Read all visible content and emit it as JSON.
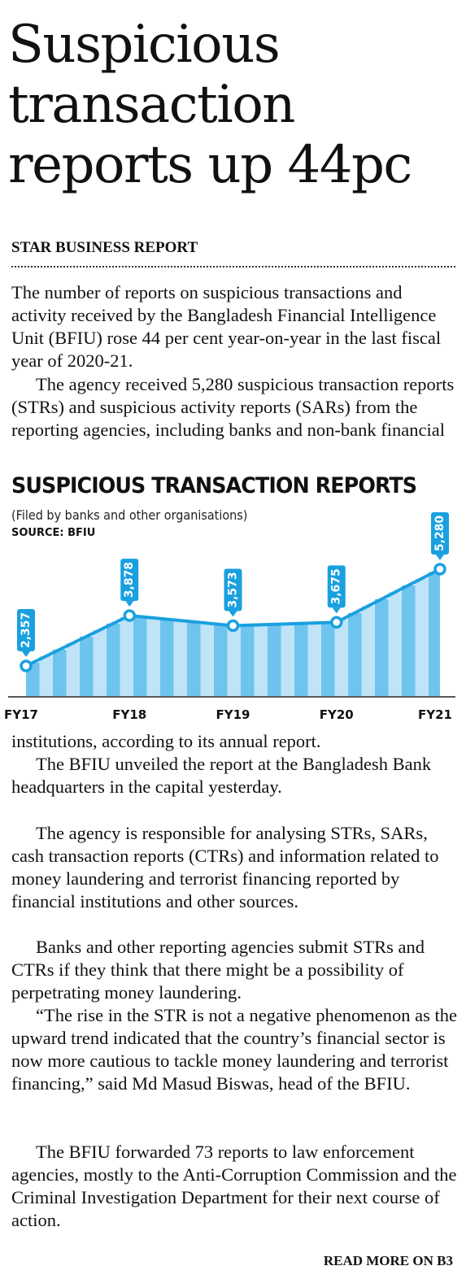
{
  "headline": "Suspicious transaction reports up 44pc",
  "byline": "STAR BUSINESS REPORT",
  "paragraphs_top": [
    "The number of reports on suspicious transactions and activity received by the Bangladesh Financial Intelligence Unit (BFIU) rose 44 per cent year-on-year in the last fiscal year of 2020-21.",
    "The agency received 5,280 suspicious transaction reports (STRs) and suspicious activity reports (SARs) from the reporting agencies, including banks and non-bank financial"
  ],
  "paragraphs_bottom": [
    "institutions, according to its annual report.",
    "The BFIU unveiled the report at the Bangladesh Bank headquarters in the capital yesterday.",
    "The agency is responsible for analysing STRs, SARs, cash transaction reports (CTRs) and information related to money laundering and terrorist financing reported by financial institutions and other sources.",
    "Banks and other reporting agencies submit STRs and CTRs if they think that there might be a possibility of perpetrating money laundering.",
    "“The rise in the STR is not a negative phenomenon as the upward trend indicated that the country’s financial sector is now more cautious to tackle money laundering and terrorist financing,” said Md Masud Biswas, head of the BFIU.",
    "The BFIU forwarded 73 reports to law enforcement agencies, mostly to the Anti-Corruption Commission and the Criminal Investigation Department for their next course of action."
  ],
  "read_more": "READ MORE ON B3",
  "chart_data": {
    "type": "line",
    "title": "SUSPICIOUS TRANSACTION REPORTS",
    "subtitle": "(Filed by banks and other organisations)",
    "source": "SOURCE: BFIU",
    "categories": [
      "FY17",
      "FY18",
      "FY19",
      "FY20",
      "FY21"
    ],
    "values": [
      2357,
      3878,
      3573,
      3675,
      5280
    ],
    "value_labels": [
      "2,357",
      "3,878",
      "3,573",
      "3,675",
      "5,280"
    ],
    "grid": false,
    "colors": {
      "line": "#1aa0e0",
      "label_bg": "#1aa0e0",
      "bar_dark": "#6ec4ee",
      "bar_light": "#bfe4f8",
      "axis": "#222222"
    }
  }
}
